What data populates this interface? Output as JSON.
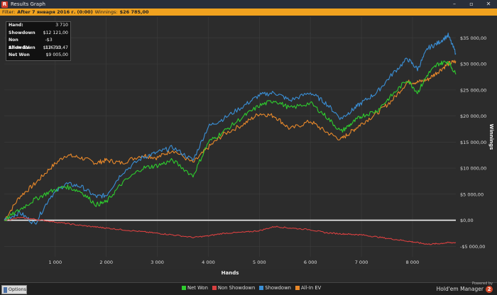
{
  "window": {
    "title": "Results Graph",
    "app_icon": "results-graph-icon"
  },
  "filter": {
    "label": "Filter:",
    "value": "After 7 января 2016 г. (0:00)",
    "winnings_label": "Winnings:",
    "winnings_value": "$26 785,00"
  },
  "stats": [
    {
      "label": "Hand:",
      "value": "3 710"
    },
    {
      "label": "Showdown",
      "value": "$12 121,00"
    },
    {
      "label": "Non Showdown",
      "value": "-$3 116,00"
    },
    {
      "label": "All-In EV",
      "value": "$12 713,47"
    },
    {
      "label": "Net Won",
      "value": "$9 005,00"
    }
  ],
  "options_label": "Options",
  "branding": {
    "powered": "Powered by",
    "name": "Hold'em Manager",
    "badge": "2"
  },
  "chart_data": {
    "type": "line",
    "xlabel": "Hands",
    "ylabel": "Winnings",
    "xlim": [
      0,
      8850
    ],
    "ylim": [
      -7000,
      39000
    ],
    "x_ticks": [
      1000,
      2000,
      3000,
      4000,
      5000,
      6000,
      7000,
      8000
    ],
    "x_tick_labels": [
      "1 000",
      "2 000",
      "3 000",
      "4 000",
      "5 000",
      "6 000",
      "7 000",
      "8 000"
    ],
    "y_ticks": [
      -5000,
      0,
      5000,
      10000,
      15000,
      20000,
      25000,
      30000,
      35000
    ],
    "y_tick_labels": [
      "-$5 000,00",
      "$0,00",
      "$5 000,00",
      "$10 000,00",
      "$15 000,00",
      "$20 000,00",
      "$25 000,00",
      "$30 000,00",
      "$35 000,00"
    ],
    "grid": true,
    "legend_position": "bottom",
    "x": [
      0,
      300,
      600,
      900,
      1200,
      1500,
      1800,
      2000,
      2300,
      2700,
      3000,
      3300,
      3700,
      4000,
      4300,
      4700,
      5000,
      5300,
      5600,
      6000,
      6300,
      6600,
      6800,
      7000,
      7300,
      7600,
      7900,
      8100,
      8300,
      8500,
      8700,
      8850
    ],
    "series": [
      {
        "name": "Net Won",
        "color": "#2ecc2e",
        "values": [
          0,
          2000,
          4000,
          5500,
          6500,
          5500,
          3000,
          3500,
          7000,
          10000,
          10500,
          11500,
          8500,
          15000,
          17000,
          20000,
          22000,
          23000,
          21500,
          22500,
          20000,
          17000,
          18500,
          20000,
          21000,
          24000,
          27000,
          24500,
          28000,
          30000,
          30500,
          28000
        ]
      },
      {
        "name": "Non Showdown",
        "color": "#d94040",
        "values": [
          0,
          500,
          200,
          -200,
          -600,
          -1000,
          -1300,
          -1500,
          -1800,
          -2200,
          -2500,
          -2800,
          -3300,
          -3000,
          -2500,
          -2300,
          -2000,
          -1200,
          -1500,
          -1800,
          -2400,
          -2600,
          -2700,
          -2800,
          -3200,
          -3600,
          -4000,
          -4300,
          -4600,
          -4500,
          -4300,
          -4300
        ]
      },
      {
        "name": "Showdown",
        "color": "#3a8fd6",
        "values": [
          0,
          1500,
          -700,
          4500,
          7000,
          6500,
          4500,
          4800,
          9000,
          12000,
          13000,
          14000,
          11500,
          18000,
          19500,
          22000,
          24000,
          24500,
          23000,
          24500,
          22500,
          19500,
          21000,
          22500,
          24500,
          28000,
          31000,
          29000,
          33000,
          34000,
          35500,
          32000
        ]
      },
      {
        "name": "All-In EV",
        "color": "#e8882a",
        "values": [
          0,
          4500,
          7000,
          10000,
          12500,
          12000,
          11000,
          11500,
          11000,
          12500,
          12000,
          13500,
          11000,
          14000,
          16500,
          18500,
          20500,
          20000,
          17500,
          19000,
          17000,
          15500,
          17000,
          18500,
          20500,
          23000,
          26500,
          26500,
          27000,
          28500,
          30000,
          30500
        ]
      }
    ]
  }
}
